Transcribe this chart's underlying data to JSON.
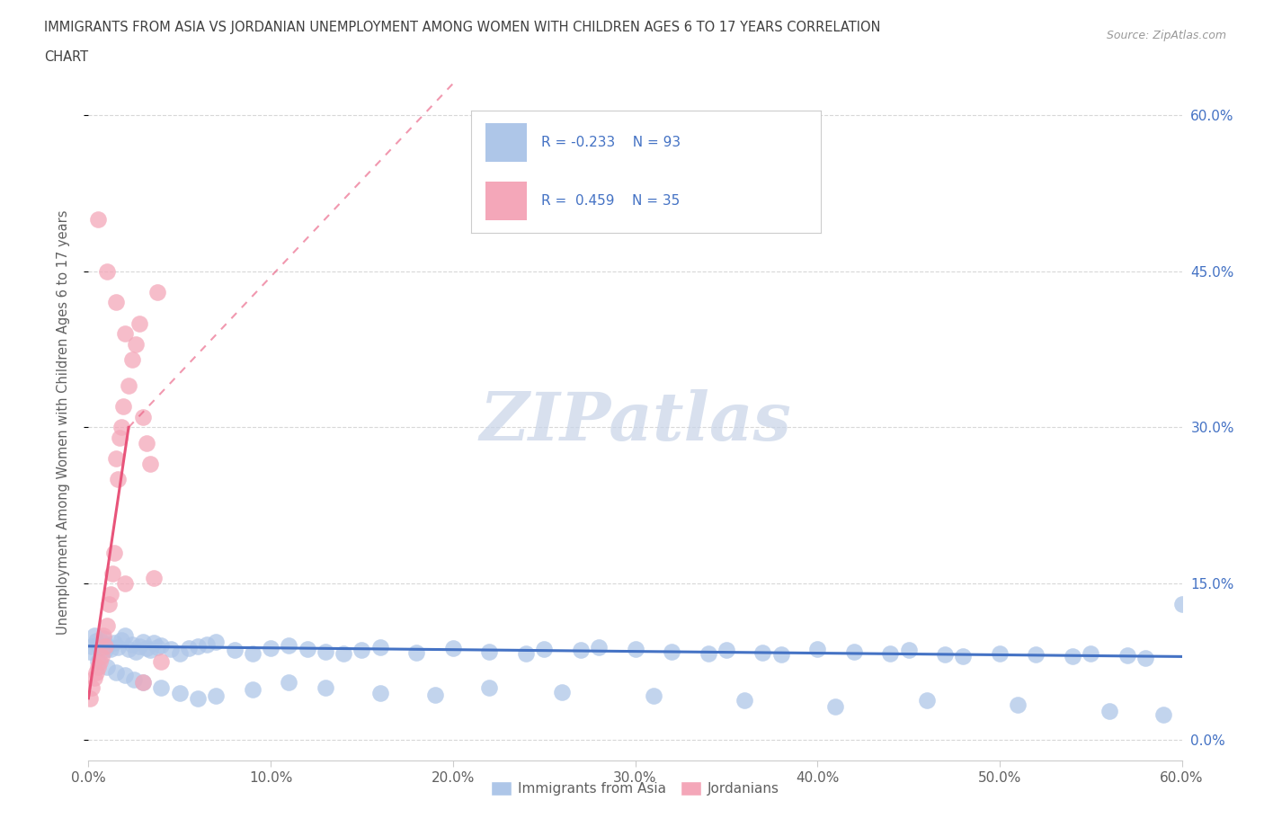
{
  "title_line1": "IMMIGRANTS FROM ASIA VS JORDANIAN UNEMPLOYMENT AMONG WOMEN WITH CHILDREN AGES 6 TO 17 YEARS CORRELATION",
  "title_line2": "CHART",
  "source_text": "Source: ZipAtlas.com",
  "ylabel": "Unemployment Among Women with Children Ages 6 to 17 years",
  "xlabel_ticks": [
    "0.0%",
    "10.0%",
    "20.0%",
    "30.0%",
    "40.0%",
    "50.0%",
    "60.0%"
  ],
  "ylabel_ticks": [
    "0.0%",
    "15.0%",
    "30.0%",
    "45.0%",
    "60.0%"
  ],
  "xmin": 0.0,
  "xmax": 0.6,
  "ymin": -0.02,
  "ymax": 0.63,
  "watermark": "ZIPatlas",
  "legend_blue_label": "Immigrants from Asia",
  "legend_pink_label": "Jordanians",
  "blue_line_color": "#4472c4",
  "pink_line_color": "#e8547a",
  "pink_dash_color": "#e8a0b0",
  "blue_dot_color": "#aec6e8",
  "pink_dot_color": "#f4a7b9",
  "grid_color": "#d8d8d8",
  "title_color": "#404040",
  "axis_color": "#606060",
  "watermark_color": "#c8d4e8",
  "blue_scatter_x": [
    0.001,
    0.002,
    0.003,
    0.004,
    0.005,
    0.006,
    0.007,
    0.008,
    0.009,
    0.01,
    0.012,
    0.014,
    0.016,
    0.018,
    0.02,
    0.022,
    0.024,
    0.026,
    0.028,
    0.03,
    0.032,
    0.034,
    0.036,
    0.038,
    0.04,
    0.045,
    0.05,
    0.055,
    0.06,
    0.065,
    0.07,
    0.08,
    0.09,
    0.1,
    0.11,
    0.12,
    0.13,
    0.14,
    0.15,
    0.16,
    0.18,
    0.2,
    0.22,
    0.24,
    0.25,
    0.27,
    0.28,
    0.3,
    0.32,
    0.34,
    0.35,
    0.37,
    0.38,
    0.4,
    0.42,
    0.44,
    0.45,
    0.47,
    0.48,
    0.5,
    0.52,
    0.54,
    0.55,
    0.57,
    0.58,
    0.6,
    0.005,
    0.01,
    0.015,
    0.02,
    0.025,
    0.03,
    0.04,
    0.05,
    0.06,
    0.07,
    0.09,
    0.11,
    0.13,
    0.16,
    0.19,
    0.22,
    0.26,
    0.31,
    0.36,
    0.41,
    0.46,
    0.51,
    0.56,
    0.59
  ],
  "blue_scatter_y": [
    0.085,
    0.09,
    0.1,
    0.095,
    0.092,
    0.088,
    0.094,
    0.098,
    0.086,
    0.091,
    0.087,
    0.093,
    0.089,
    0.096,
    0.1,
    0.087,
    0.092,
    0.085,
    0.09,
    0.094,
    0.088,
    0.086,
    0.093,
    0.089,
    0.091,
    0.087,
    0.083,
    0.088,
    0.09,
    0.092,
    0.094,
    0.086,
    0.083,
    0.088,
    0.091,
    0.087,
    0.085,
    0.083,
    0.086,
    0.089,
    0.084,
    0.088,
    0.085,
    0.083,
    0.087,
    0.086,
    0.089,
    0.087,
    0.085,
    0.083,
    0.086,
    0.084,
    0.082,
    0.087,
    0.085,
    0.083,
    0.086,
    0.082,
    0.08,
    0.083,
    0.082,
    0.08,
    0.083,
    0.081,
    0.079,
    0.13,
    0.075,
    0.07,
    0.065,
    0.062,
    0.058,
    0.055,
    0.05,
    0.045,
    0.04,
    0.042,
    0.048,
    0.055,
    0.05,
    0.045,
    0.043,
    0.05,
    0.046,
    0.042,
    0.038,
    0.032,
    0.038,
    0.034,
    0.028,
    0.024
  ],
  "pink_scatter_x": [
    0.001,
    0.002,
    0.003,
    0.004,
    0.005,
    0.006,
    0.007,
    0.008,
    0.009,
    0.01,
    0.011,
    0.012,
    0.013,
    0.014,
    0.015,
    0.016,
    0.017,
    0.018,
    0.019,
    0.02,
    0.022,
    0.024,
    0.026,
    0.028,
    0.03,
    0.032,
    0.034,
    0.036,
    0.038,
    0.04,
    0.005,
    0.01,
    0.015,
    0.02,
    0.03
  ],
  "pink_scatter_y": [
    0.04,
    0.05,
    0.06,
    0.065,
    0.07,
    0.075,
    0.08,
    0.1,
    0.09,
    0.11,
    0.13,
    0.14,
    0.16,
    0.18,
    0.27,
    0.25,
    0.29,
    0.3,
    0.32,
    0.15,
    0.34,
    0.365,
    0.38,
    0.4,
    0.31,
    0.285,
    0.265,
    0.155,
    0.43,
    0.075,
    0.5,
    0.45,
    0.42,
    0.39,
    0.055
  ]
}
